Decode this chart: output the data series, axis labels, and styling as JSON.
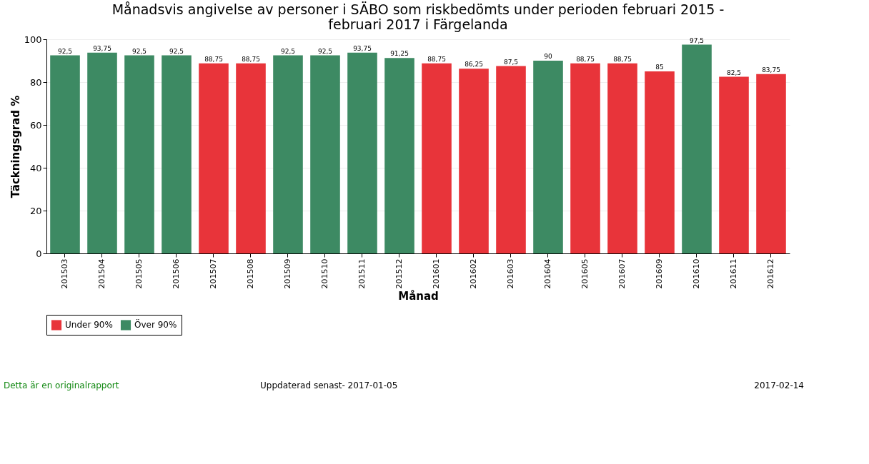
{
  "chart_data": {
    "type": "bar",
    "title": [
      "Månadsvis angivelse av personer i SÄBO som riskbedömts under perioden  februari 2015 -",
      "februari 2017 i  Färgelanda"
    ],
    "xlabel": "Månad",
    "ylabel": "Täckningsgrad %",
    "categories": [
      "201503",
      "201504",
      "201505",
      "201506",
      "201507",
      "201508",
      "201509",
      "201510",
      "201511",
      "201512",
      "201601",
      "201602",
      "201603",
      "201604",
      "201605",
      "201607",
      "201609",
      "201610",
      "201611",
      "201612"
    ],
    "series": [
      {
        "name": "Under 90%",
        "color": "#e8343a",
        "values": [
          null,
          null,
          null,
          null,
          88.75,
          88.75,
          null,
          null,
          null,
          null,
          88.75,
          86.25,
          87.5,
          null,
          88.75,
          88.75,
          85,
          null,
          82.5,
          83.75
        ],
        "value_labels": [
          null,
          null,
          null,
          null,
          "88,75",
          "88,75",
          null,
          null,
          null,
          null,
          "88,75",
          "86,25",
          "87,5",
          null,
          "88,75",
          "88,75",
          "85",
          null,
          "82,5",
          "83,75"
        ]
      },
      {
        "name": "Över 90%",
        "color": "#3d8a63",
        "values": [
          92.5,
          93.75,
          92.5,
          92.5,
          null,
          null,
          92.5,
          92.5,
          93.75,
          91.25,
          null,
          null,
          null,
          90,
          null,
          null,
          null,
          97.5,
          null,
          null
        ],
        "value_labels": [
          "92,5",
          "93,75",
          "92,5",
          "92,5",
          null,
          null,
          "92,5",
          "92,5",
          "93,75",
          "91,25",
          null,
          null,
          null,
          "90",
          null,
          null,
          null,
          "97,5",
          null,
          null
        ]
      }
    ],
    "ylim": [
      0,
      100
    ],
    "yticks": [
      0,
      20,
      40,
      60,
      80,
      100
    ],
    "grid": "y",
    "legend": "bottom left",
    "annotations": [
      "Detta är en originalrapport",
      "Uppdaterad senast- 2017-01-05",
      "2017-02-14"
    ]
  }
}
